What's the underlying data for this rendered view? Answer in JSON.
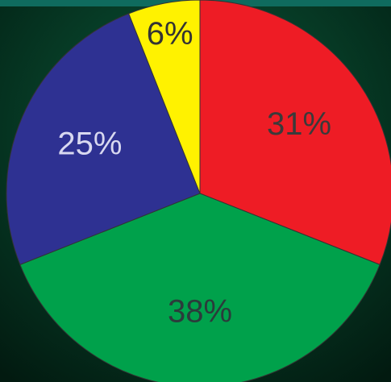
{
  "chart_data": {
    "type": "pie",
    "values": [
      31,
      38,
      25,
      6
    ],
    "value_labels": [
      "31%",
      "38%",
      "25%",
      "6%"
    ],
    "colors": [
      "#ee1c25",
      "#00a14b",
      "#2e3192",
      "#fff200"
    ],
    "label_colors": [
      "#3a3a3a",
      "#2b3b3b",
      "#d8d8f0",
      "#333333"
    ]
  }
}
